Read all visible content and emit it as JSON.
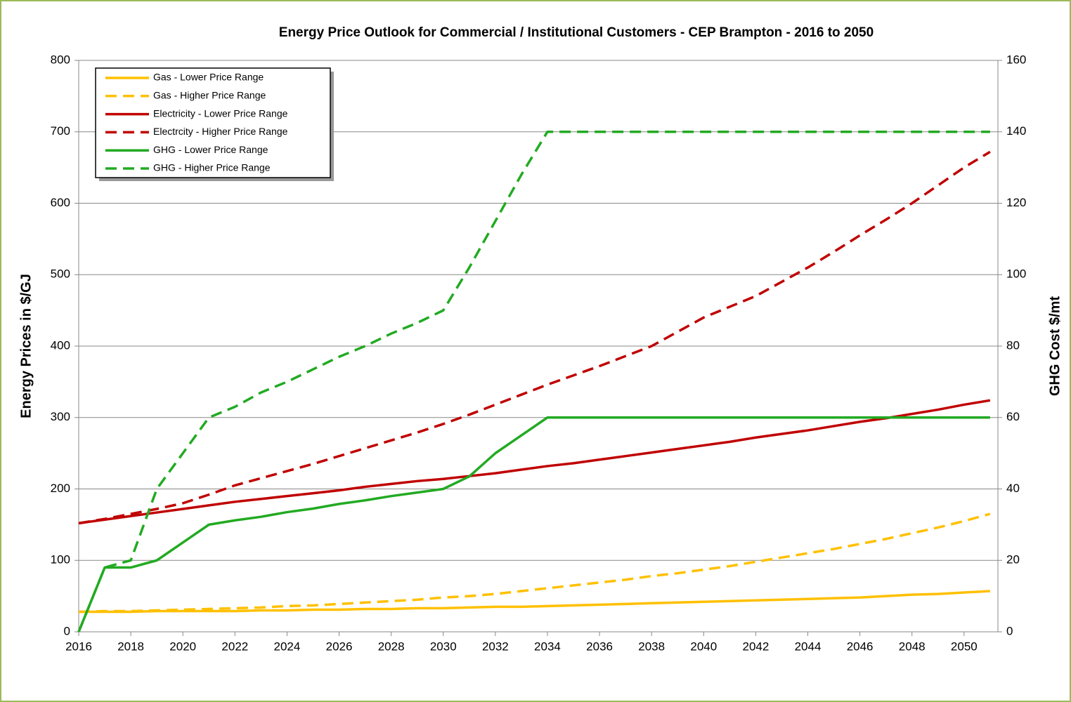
{
  "chart_data": {
    "type": "line",
    "title": "Energy Price Outlook for Commercial  / Institutional Customers - CEP Brampton - 2016 to 2050",
    "y_label": "Energy Prices in $/GJ",
    "y2_label": "GHG Cost $/mt",
    "x": [
      2016,
      2017,
      2018,
      2019,
      2020,
      2021,
      2022,
      2023,
      2024,
      2025,
      2026,
      2027,
      2028,
      2029,
      2030,
      2031,
      2032,
      2033,
      2034,
      2035,
      2036,
      2037,
      2038,
      2039,
      2040,
      2041,
      2042,
      2043,
      2044,
      2045,
      2046,
      2047,
      2048,
      2049,
      2050,
      2051
    ],
    "xlim": [
      2016,
      2051.3
    ],
    "xticks": [
      2016,
      2018,
      2020,
      2022,
      2024,
      2026,
      2028,
      2030,
      2032,
      2034,
      2036,
      2038,
      2040,
      2042,
      2044,
      2046,
      2048,
      2050
    ],
    "ylim": [
      0,
      800
    ],
    "yticks": [
      0,
      100,
      200,
      300,
      400,
      500,
      600,
      700,
      800
    ],
    "y2lim": [
      0,
      160
    ],
    "y2ticks": [
      0,
      20,
      40,
      60,
      80,
      100,
      120,
      140,
      160
    ],
    "grid": true,
    "legend": "top-left",
    "series": [
      {
        "name": "Gas - Lower Price Range",
        "color": "#FFC000",
        "dash": false,
        "axis": "y",
        "values": [
          28,
          28,
          28,
          29,
          29,
          29,
          29,
          30,
          30,
          31,
          31,
          32,
          32,
          33,
          33,
          34,
          35,
          35,
          36,
          37,
          38,
          39,
          40,
          41,
          42,
          43,
          44,
          45,
          46,
          47,
          48,
          50,
          52,
          53,
          55,
          57
        ]
      },
      {
        "name": "Gas - Higher Price Range",
        "color": "#FFC000",
        "dash": true,
        "axis": "y",
        "values": [
          28,
          29,
          29,
          30,
          31,
          32,
          33,
          34,
          36,
          37,
          39,
          41,
          43,
          45,
          48,
          50,
          53,
          57,
          61,
          65,
          69,
          73,
          78,
          82,
          87,
          92,
          98,
          104,
          110,
          116,
          123,
          130,
          138,
          146,
          155,
          165
        ]
      },
      {
        "name": "Electricity - Lower Price Range",
        "color": "#C00000",
        "dash": false,
        "axis": "y",
        "values": [
          152,
          157,
          162,
          167,
          172,
          177,
          182,
          186,
          190,
          194,
          198,
          203,
          207,
          211,
          214,
          218,
          222,
          227,
          232,
          236,
          241,
          246,
          251,
          256,
          261,
          266,
          272,
          277,
          282,
          288,
          294,
          299,
          305,
          311,
          318,
          324
        ]
      },
      {
        "name": "Electrcity - Higher Price Range",
        "color": "#C00000",
        "dash": true,
        "axis": "y",
        "values": [
          152,
          158,
          165,
          172,
          180,
          192,
          205,
          215,
          225,
          235,
          246,
          257,
          268,
          279,
          291,
          304,
          318,
          332,
          346,
          359,
          372,
          386,
          400,
          420,
          440,
          455,
          470,
          490,
          510,
          532,
          555,
          577,
          600,
          625,
          650,
          672
        ]
      },
      {
        "name": "GHG - Lower Price Range",
        "color": "#22AA22",
        "dash": false,
        "axis": "y2",
        "values": [
          0,
          18,
          18,
          20,
          25,
          30,
          31.2,
          32.2,
          33.5,
          34.5,
          35.8,
          36.8,
          38,
          39,
          40,
          43.5,
          50,
          55,
          60,
          60,
          60,
          60,
          60,
          60,
          60,
          60,
          60,
          60,
          60,
          60,
          60,
          60,
          60,
          60,
          60,
          60
        ]
      },
      {
        "name": "GHG - Higher Price Range",
        "color": "#22AA22",
        "dash": true,
        "axis": "y2",
        "values": [
          0,
          18,
          20,
          40,
          50,
          60,
          63,
          67,
          70,
          73.5,
          77,
          80,
          83.5,
          86.5,
          90,
          102,
          115,
          128,
          140,
          140,
          140,
          140,
          140,
          140,
          140,
          140,
          140,
          140,
          140,
          140,
          140,
          140,
          140,
          140,
          140,
          140
        ]
      }
    ]
  }
}
